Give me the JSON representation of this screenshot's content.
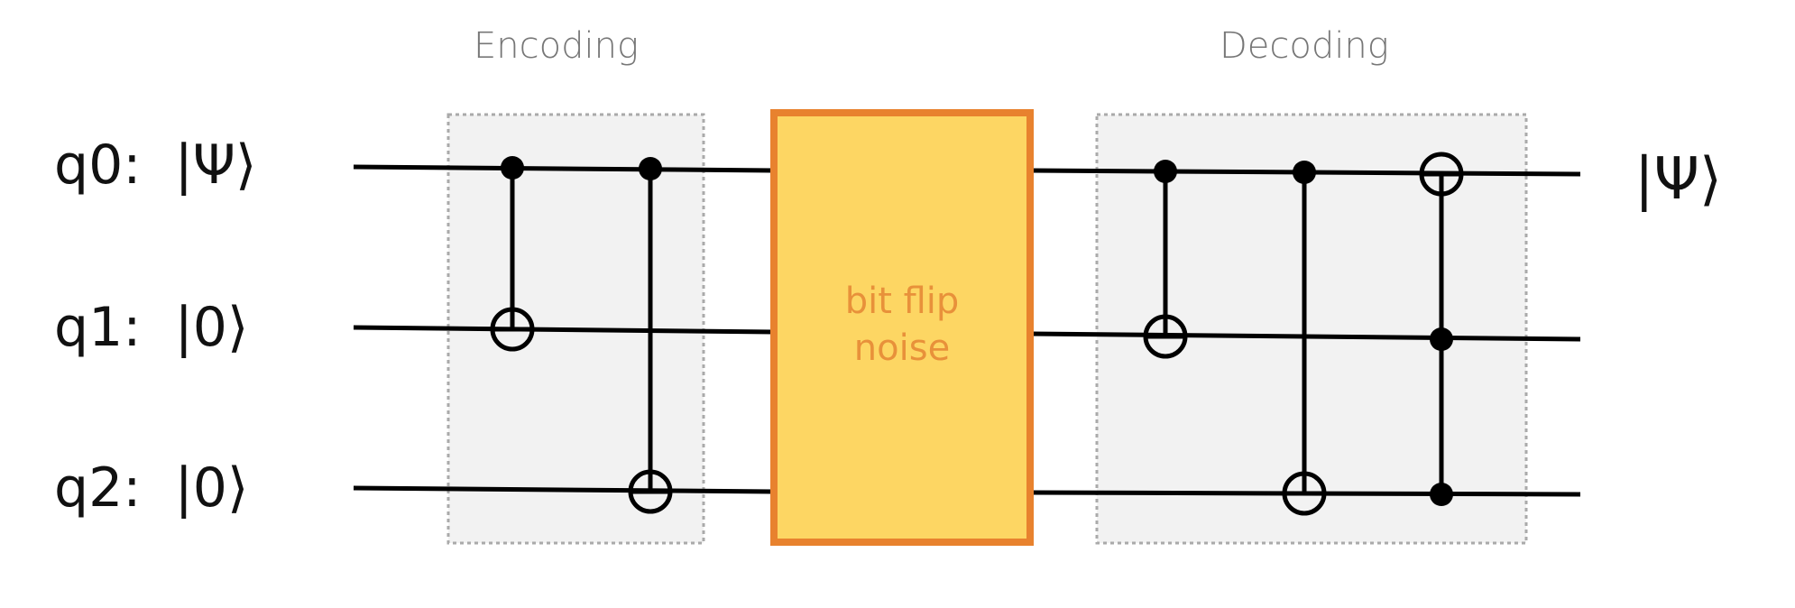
{
  "labels": {
    "encoding": "Encoding",
    "decoding": "Decoding",
    "noise_line1": "bit flip",
    "noise_line2": "noise",
    "output_state": "|Ψ⟩"
  },
  "qubits": [
    {
      "name": "q0:",
      "state": "|Ψ⟩"
    },
    {
      "name": "q1:",
      "state": "|0⟩"
    },
    {
      "name": "q2:",
      "state": "|0⟩"
    }
  ],
  "colors": {
    "wire": "#000000",
    "section_fill": "#f2f2f2",
    "section_border": "#aaaaaa",
    "noise_fill": "#fdd663",
    "noise_border": "#e8822e",
    "noise_text": "#e8913a"
  }
}
